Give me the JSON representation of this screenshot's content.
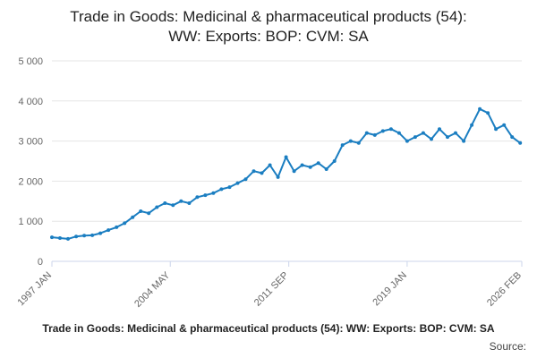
{
  "chart_data": {
    "type": "line",
    "title_line1": "Trade in Goods: Medicinal & pharmaceutical products (54):",
    "title_line2": "WW: Exports: BOP: CVM: SA",
    "xlabel": "",
    "ylabel": "",
    "ylim": [
      0,
      5000
    ],
    "y_ticks": [
      0,
      1000,
      2000,
      3000,
      4000,
      5000
    ],
    "y_tick_labels": [
      "0",
      "1 000",
      "2 000",
      "3 000",
      "4 000",
      "5 000"
    ],
    "x_range": [
      1997.0,
      2026.1
    ],
    "x_ticks": [
      1997.0,
      2004.33,
      2011.67,
      2019.0,
      2026.1
    ],
    "x_tick_labels": [
      "1997 JAN",
      "2004 MAY",
      "2011 SEP",
      "2019 JAN",
      "2026 FEB"
    ],
    "grid": true,
    "series": [
      {
        "name": "Trade in Goods: Medicinal & pharmaceutical products (54): WW: Exports: BOP: CVM: SA",
        "color": "#1b7ec1",
        "x": [
          1997.0,
          1997.5,
          1998.0,
          1998.5,
          1999.0,
          1999.5,
          2000.0,
          2000.5,
          2001.0,
          2001.5,
          2002.0,
          2002.5,
          2003.0,
          2003.5,
          2004.0,
          2004.5,
          2005.0,
          2005.5,
          2006.0,
          2006.5,
          2007.0,
          2007.5,
          2008.0,
          2008.5,
          2009.0,
          2009.5,
          2010.0,
          2010.5,
          2011.0,
          2011.5,
          2012.0,
          2012.5,
          2013.0,
          2013.5,
          2014.0,
          2014.5,
          2015.0,
          2015.5,
          2016.0,
          2016.5,
          2017.0,
          2017.5,
          2018.0,
          2018.5,
          2019.0,
          2019.5,
          2020.0,
          2020.5,
          2021.0,
          2021.5,
          2022.0,
          2022.5,
          2023.0,
          2023.5,
          2024.0,
          2024.5,
          2025.0,
          2025.5,
          2026.0
        ],
        "values": [
          600,
          580,
          560,
          620,
          640,
          650,
          700,
          780,
          850,
          950,
          1100,
          1250,
          1200,
          1350,
          1450,
          1400,
          1500,
          1450,
          1600,
          1650,
          1700,
          1800,
          1850,
          1950,
          2050,
          2250,
          2200,
          2400,
          2100,
          2600,
          2250,
          2400,
          2350,
          2450,
          2300,
          2500,
          2900,
          3000,
          2950,
          3200,
          3150,
          3250,
          3300,
          3200,
          3000,
          3100,
          3200,
          3050,
          3300,
          3100,
          3200,
          3000,
          3400,
          3800,
          3700,
          3300,
          3400,
          3100,
          2950
        ],
        "last_value": 2950
      }
    ]
  },
  "legend_text": "Trade in Goods: Medicinal & pharmaceutical products (54): WW: Exports: BOP: CVM: SA",
  "source_text": "Source:"
}
